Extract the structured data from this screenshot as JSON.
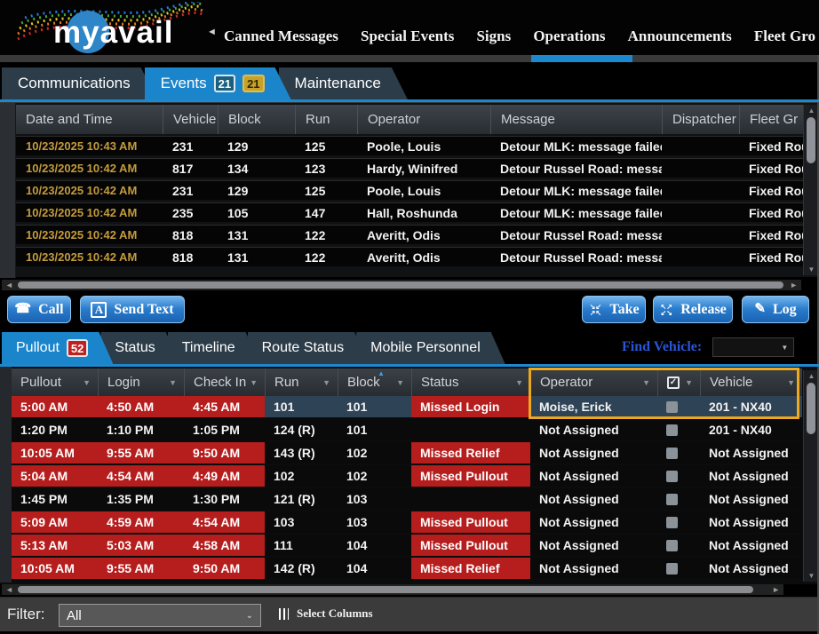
{
  "header": {
    "logo_text": "myavail",
    "nav_scroll_left": "◄",
    "nav_items": [
      {
        "label": "Canned Messages",
        "active": false
      },
      {
        "label": "Special Events",
        "active": false
      },
      {
        "label": "Signs",
        "active": false
      },
      {
        "label": "Operations",
        "active": true
      },
      {
        "label": "Announcements",
        "active": false
      },
      {
        "label": "Fleet Gro",
        "active": false
      }
    ]
  },
  "main_tabs": [
    {
      "label": "Communications",
      "active": false,
      "badges": []
    },
    {
      "label": "Events",
      "active": true,
      "badges": [
        {
          "text": "21",
          "style": "blue"
        },
        {
          "text": "21",
          "style": "gold"
        }
      ]
    },
    {
      "label": "Maintenance",
      "active": false,
      "badges": []
    }
  ],
  "events_table": {
    "columns": [
      "Date and Time",
      "Vehicle",
      "Block",
      "Run",
      "Operator",
      "Message",
      "Dispatcher",
      "Fleet Gr"
    ],
    "rows": [
      [
        "10/23/2025 10:43 AM",
        "231",
        "129",
        "125",
        "Poole, Louis",
        "Detour MLK: message failed",
        "",
        "Fixed Rou"
      ],
      [
        "10/23/2025 10:42 AM",
        "817",
        "134",
        "123",
        "Hardy, Winifred",
        "Detour Russel Road: message fa",
        "",
        "Fixed Rou"
      ],
      [
        "10/23/2025 10:42 AM",
        "231",
        "129",
        "125",
        "Poole, Louis",
        "Detour MLK: message failed",
        "",
        "Fixed Rou"
      ],
      [
        "10/23/2025 10:42 AM",
        "235",
        "105",
        "147",
        "Hall, Roshunda",
        "Detour MLK: message failed",
        "",
        "Fixed Rou"
      ],
      [
        "10/23/2025 10:42 AM",
        "818",
        "131",
        "122",
        "Averitt, Odis",
        "Detour Russel Road: message fa",
        "",
        "Fixed Rou"
      ],
      [
        "10/23/2025 10:42 AM",
        "818",
        "131",
        "122",
        "Averitt, Odis",
        "Detour Russel Road: message fa",
        "",
        "Fixed Rou"
      ]
    ]
  },
  "action_bar": {
    "call_label": "Call",
    "send_text_label": "Send Text",
    "send_text_icon": "A",
    "take_label": "Take",
    "release_label": "Release",
    "log_label": "Log"
  },
  "pullout_panel": {
    "tabs": [
      {
        "label": "Pullout",
        "active": true,
        "badge": "52"
      },
      {
        "label": "Status",
        "active": false
      },
      {
        "label": "Timeline",
        "active": false
      },
      {
        "label": "Route Status",
        "active": false
      },
      {
        "label": "Mobile Personnel",
        "active": false
      }
    ],
    "find_vehicle_label": "Find Vehicle:",
    "find_vehicle_value": ""
  },
  "pullout_table": {
    "columns": [
      {
        "label": "Pullout"
      },
      {
        "label": "Login"
      },
      {
        "label": "Check In"
      },
      {
        "label": "Run"
      },
      {
        "label": "Block",
        "sorted": "asc"
      },
      {
        "label": "Status"
      },
      {
        "label": "Operator"
      },
      {
        "label": "",
        "type": "checkbox"
      },
      {
        "label": "Vehicle"
      }
    ],
    "rows": [
      {
        "pullout": "5:00 AM",
        "login": "4:50 AM",
        "check_in": "4:45 AM",
        "run": "101",
        "block": "101",
        "status": "Missed Login",
        "operator": "Moise, Erick",
        "checked": false,
        "vehicle": "201 - NX40",
        "missed": true,
        "selected": true
      },
      {
        "pullout": "1:20 PM",
        "login": "1:10 PM",
        "check_in": "1:05 PM",
        "run": "124 (R)",
        "block": "101",
        "status": "",
        "operator": "Not Assigned",
        "checked": false,
        "vehicle": "201 - NX40",
        "missed": false,
        "selected": false
      },
      {
        "pullout": "10:05 AM",
        "login": "9:55 AM",
        "check_in": "9:50 AM",
        "run": "143 (R)",
        "block": "102",
        "status": "Missed Relief",
        "operator": "Not Assigned",
        "checked": false,
        "vehicle": "Not Assigned",
        "missed": true,
        "selected": false
      },
      {
        "pullout": "5:04 AM",
        "login": "4:54 AM",
        "check_in": "4:49 AM",
        "run": "102",
        "block": "102",
        "status": "Missed Pullout",
        "operator": "Not Assigned",
        "checked": false,
        "vehicle": "Not Assigned",
        "missed": true,
        "selected": false
      },
      {
        "pullout": "1:45 PM",
        "login": "1:35 PM",
        "check_in": "1:30 PM",
        "run": "121 (R)",
        "block": "103",
        "status": "",
        "operator": "Not Assigned",
        "checked": false,
        "vehicle": "Not Assigned",
        "missed": false,
        "selected": false
      },
      {
        "pullout": "5:09 AM",
        "login": "4:59 AM",
        "check_in": "4:54 AM",
        "run": "103",
        "block": "103",
        "status": "Missed Pullout",
        "operator": "Not Assigned",
        "checked": false,
        "vehicle": "Not Assigned",
        "missed": true,
        "selected": false
      },
      {
        "pullout": "5:13 AM",
        "login": "5:03 AM",
        "check_in": "4:58 AM",
        "run": "111",
        "block": "104",
        "status": "Missed Pullout",
        "operator": "Not Assigned",
        "checked": false,
        "vehicle": "Not Assigned",
        "missed": true,
        "selected": false
      },
      {
        "pullout": "10:05 AM",
        "login": "9:55 AM",
        "check_in": "9:50 AM",
        "run": "142 (R)",
        "block": "104",
        "status": "Missed Relief",
        "operator": "Not Assigned",
        "checked": false,
        "vehicle": "Not Assigned",
        "missed": true,
        "selected": false
      }
    ]
  },
  "footer": {
    "filter_label": "Filter:",
    "filter_value": "All",
    "select_columns_label": "Select Columns"
  },
  "colors": {
    "accent_blue": "#1e88cf",
    "missed_red": "#b61d1d",
    "selected_row": "#2e4356",
    "gold_date": "#c49b3c",
    "highlight_orange": "#eda81d"
  }
}
